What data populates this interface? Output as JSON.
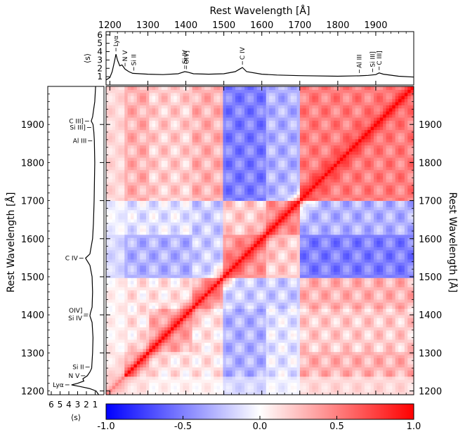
{
  "chart_data": {
    "type": "heatmap",
    "title": "",
    "xlabel": "Rest Wavelength [Å]",
    "ylabel": "Rest Wavelength [Å]",
    "ylabel_right": "Rest Wavelength [Å]",
    "xlim": [
      1190,
      2000
    ],
    "ylim": [
      1190,
      2000
    ],
    "x_ticks": [
      "1200",
      "1300",
      "1400",
      "1500",
      "1600",
      "1700",
      "1800",
      "1900"
    ],
    "y_ticks": [
      "1200",
      "1300",
      "1400",
      "1500",
      "1600",
      "1700",
      "1800",
      "1900"
    ],
    "colorbar": {
      "min": -1.0,
      "max": 1.0,
      "ticks": [
        "-1.0",
        "-0.5",
        "0.0",
        "0.5",
        "1.0"
      ],
      "colors": [
        "#0000ff",
        "#ffffff",
        "#ff0000"
      ]
    },
    "mean_spectrum": {
      "axis_label": "⟨s⟩",
      "ticks": [
        "1",
        "2",
        "3",
        "4",
        "5",
        "6"
      ],
      "range": [
        0.3,
        6
      ],
      "x": [
        1190,
        1200,
        1206,
        1212,
        1216,
        1220,
        1226,
        1232,
        1240,
        1250,
        1260,
        1300,
        1340,
        1380,
        1397,
        1404,
        1420,
        1460,
        1500,
        1530,
        1545,
        1549,
        1560,
        1600,
        1640,
        1700,
        1800,
        1858,
        1880,
        1900,
        1909,
        1920,
        1960,
        2000
      ],
      "y": [
        0.6,
        0.9,
        1.6,
        2.8,
        3.7,
        3.0,
        2.3,
        2.4,
        1.9,
        1.6,
        1.4,
        1.3,
        1.25,
        1.35,
        1.6,
        1.55,
        1.35,
        1.3,
        1.35,
        1.6,
        2.0,
        2.1,
        1.6,
        1.3,
        1.2,
        1.12,
        1.05,
        1.1,
        1.15,
        1.25,
        1.45,
        1.3,
        1.05,
        0.95
      ]
    },
    "lines": [
      {
        "name": "Lyα",
        "wavelength": 1216
      },
      {
        "name": "N V",
        "wavelength": 1240
      },
      {
        "name": "Si II",
        "wavelength": 1263
      },
      {
        "name": "Si IV",
        "wavelength": 1397
      },
      {
        "name": "OIV]",
        "wavelength": 1402
      },
      {
        "name": "C IV",
        "wavelength": 1549
      },
      {
        "name": "Al III",
        "wavelength": 1857
      },
      {
        "name": "Si III]",
        "wavelength": 1892
      },
      {
        "name": "C III]",
        "wavelength": 1909
      }
    ]
  }
}
